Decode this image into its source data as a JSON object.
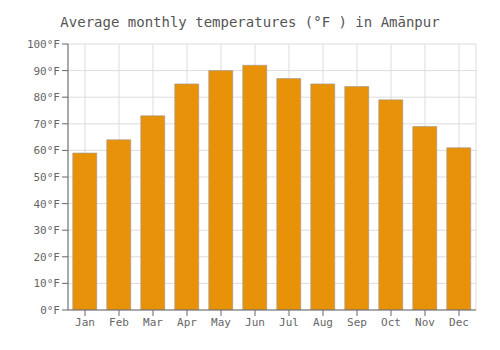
{
  "chart_data": {
    "type": "bar",
    "title": "Average monthly temperatures (°F ) in Amānpur",
    "categories": [
      "Jan",
      "Feb",
      "Mar",
      "Apr",
      "May",
      "Jun",
      "Jul",
      "Aug",
      "Sep",
      "Oct",
      "Nov",
      "Dec"
    ],
    "values": [
      59,
      64,
      73,
      85,
      90,
      92,
      87,
      85,
      84,
      79,
      69,
      61
    ],
    "color": "#E8920A",
    "ylim": [
      0,
      100
    ],
    "yticks": [
      {
        "value": 0,
        "label": "0°F"
      },
      {
        "value": 10,
        "label": "10°F"
      },
      {
        "value": 20,
        "label": "20°F"
      },
      {
        "value": 30,
        "label": "30°F"
      },
      {
        "value": 40,
        "label": "40°F"
      },
      {
        "value": 50,
        "label": "50°F"
      },
      {
        "value": 60,
        "label": "60°F"
      },
      {
        "value": 70,
        "label": "70°F"
      },
      {
        "value": 80,
        "label": "80°F"
      },
      {
        "value": 90,
        "label": "90°F"
      },
      {
        "value": 100,
        "label": "100°F"
      }
    ],
    "grid": true
  }
}
